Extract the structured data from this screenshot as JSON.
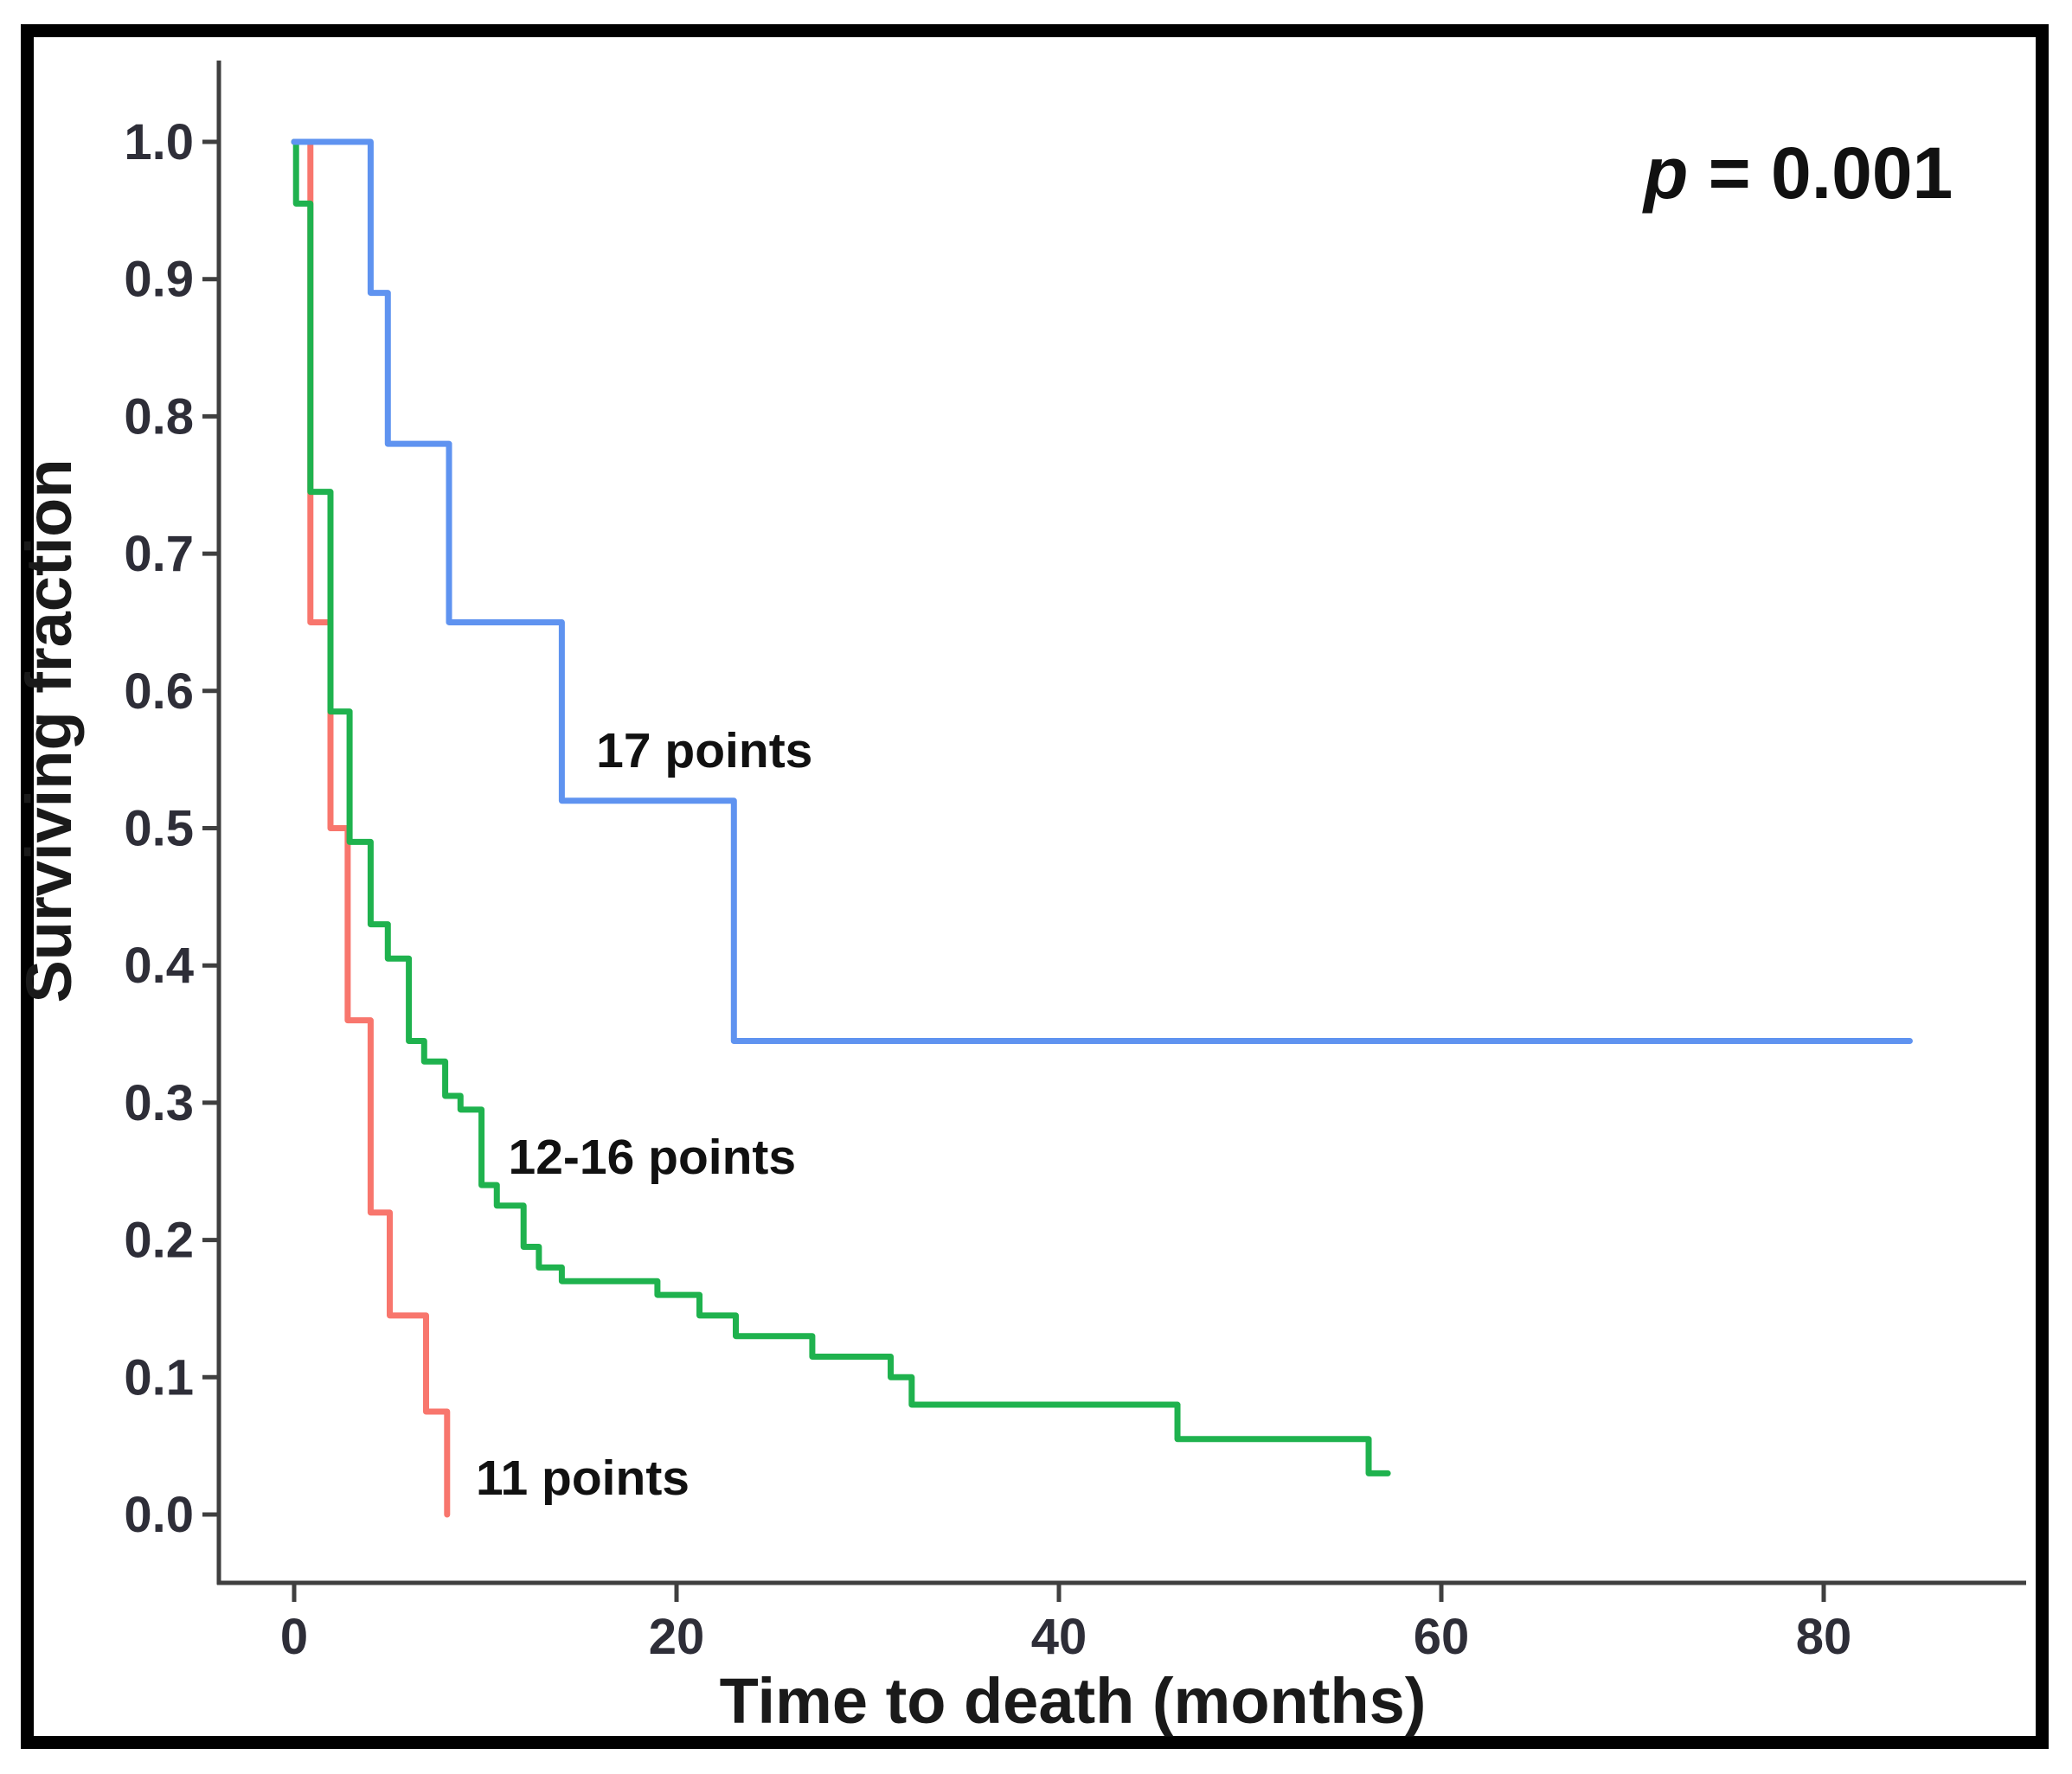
{
  "annotations": {
    "p_symbol": "p",
    "p_rest": " = 0.001"
  },
  "chart_data": {
    "type": "line",
    "subtype": "kaplan-meier-step-survival",
    "title": "",
    "xlabel": "Time to death (months)",
    "ylabel": "Surviving fraction",
    "x_ticks": [
      "0",
      "20",
      "40",
      "60",
      "80"
    ],
    "x_tick_values": [
      0,
      20,
      40,
      60,
      80
    ],
    "y_ticks": [
      "1.0",
      "0.9",
      "0.8",
      "0.7",
      "0.6",
      "0.5",
      "0.4",
      "0.3",
      "0.2",
      "0.1",
      "0.0"
    ],
    "y_tick_values": [
      1.0,
      0.9,
      0.8,
      0.7,
      0.6,
      0.5,
      0.4,
      0.3,
      0.2,
      0.1,
      0.0
    ],
    "xlim": [
      -4,
      90.5
    ],
    "ylim": [
      0,
      1.0
    ],
    "grid": false,
    "legend": "inline-labels",
    "p_value_text": "p = 0.001",
    "axis_color": "#3f3f3f",
    "series": [
      {
        "name": "11 points",
        "color": "#f8766d",
        "steps": [
          [
            0,
            1.0
          ],
          [
            0.85,
            0.65
          ],
          [
            1.9,
            0.5
          ],
          [
            2.8,
            0.36
          ],
          [
            4.0,
            0.22
          ],
          [
            5.0,
            0.145
          ],
          [
            6.9,
            0.075
          ],
          [
            8.0,
            0.0
          ]
        ],
        "end_x": 8.0,
        "label": {
          "text": "11 points",
          "x": 9.5,
          "y": 0.044
        }
      },
      {
        "name": "12-16 points",
        "color": "#1fb24e",
        "steps": [
          [
            0,
            1.0
          ],
          [
            0.1,
            0.955
          ],
          [
            0.85,
            0.745
          ],
          [
            1.9,
            0.585
          ],
          [
            2.9,
            0.49
          ],
          [
            4.0,
            0.43
          ],
          [
            4.9,
            0.405
          ],
          [
            6.0,
            0.345
          ],
          [
            6.8,
            0.33
          ],
          [
            7.9,
            0.305
          ],
          [
            8.7,
            0.295
          ],
          [
            9.8,
            0.24
          ],
          [
            10.6,
            0.225
          ],
          [
            12.0,
            0.195
          ],
          [
            12.8,
            0.18
          ],
          [
            14.0,
            0.17
          ],
          [
            19.0,
            0.16
          ],
          [
            21.2,
            0.145
          ],
          [
            23.1,
            0.13
          ],
          [
            27.1,
            0.115
          ],
          [
            31.2,
            0.1
          ],
          [
            32.3,
            0.08
          ],
          [
            46.2,
            0.055
          ],
          [
            56.2,
            0.03
          ]
        ],
        "end_x": 57.2,
        "label": {
          "text": "12-16 points",
          "x": 11.2,
          "y": 0.278
        }
      },
      {
        "name": "17 points",
        "color": "#5f93f0",
        "steps": [
          [
            0,
            1.0
          ],
          [
            4.0,
            0.89
          ],
          [
            4.9,
            0.78
          ],
          [
            8.1,
            0.65
          ],
          [
            14.0,
            0.52
          ],
          [
            23.0,
            0.345
          ]
        ],
        "end_x": 84.5,
        "label": {
          "text": "17 points",
          "x": 15.8,
          "y": 0.574
        }
      }
    ]
  }
}
